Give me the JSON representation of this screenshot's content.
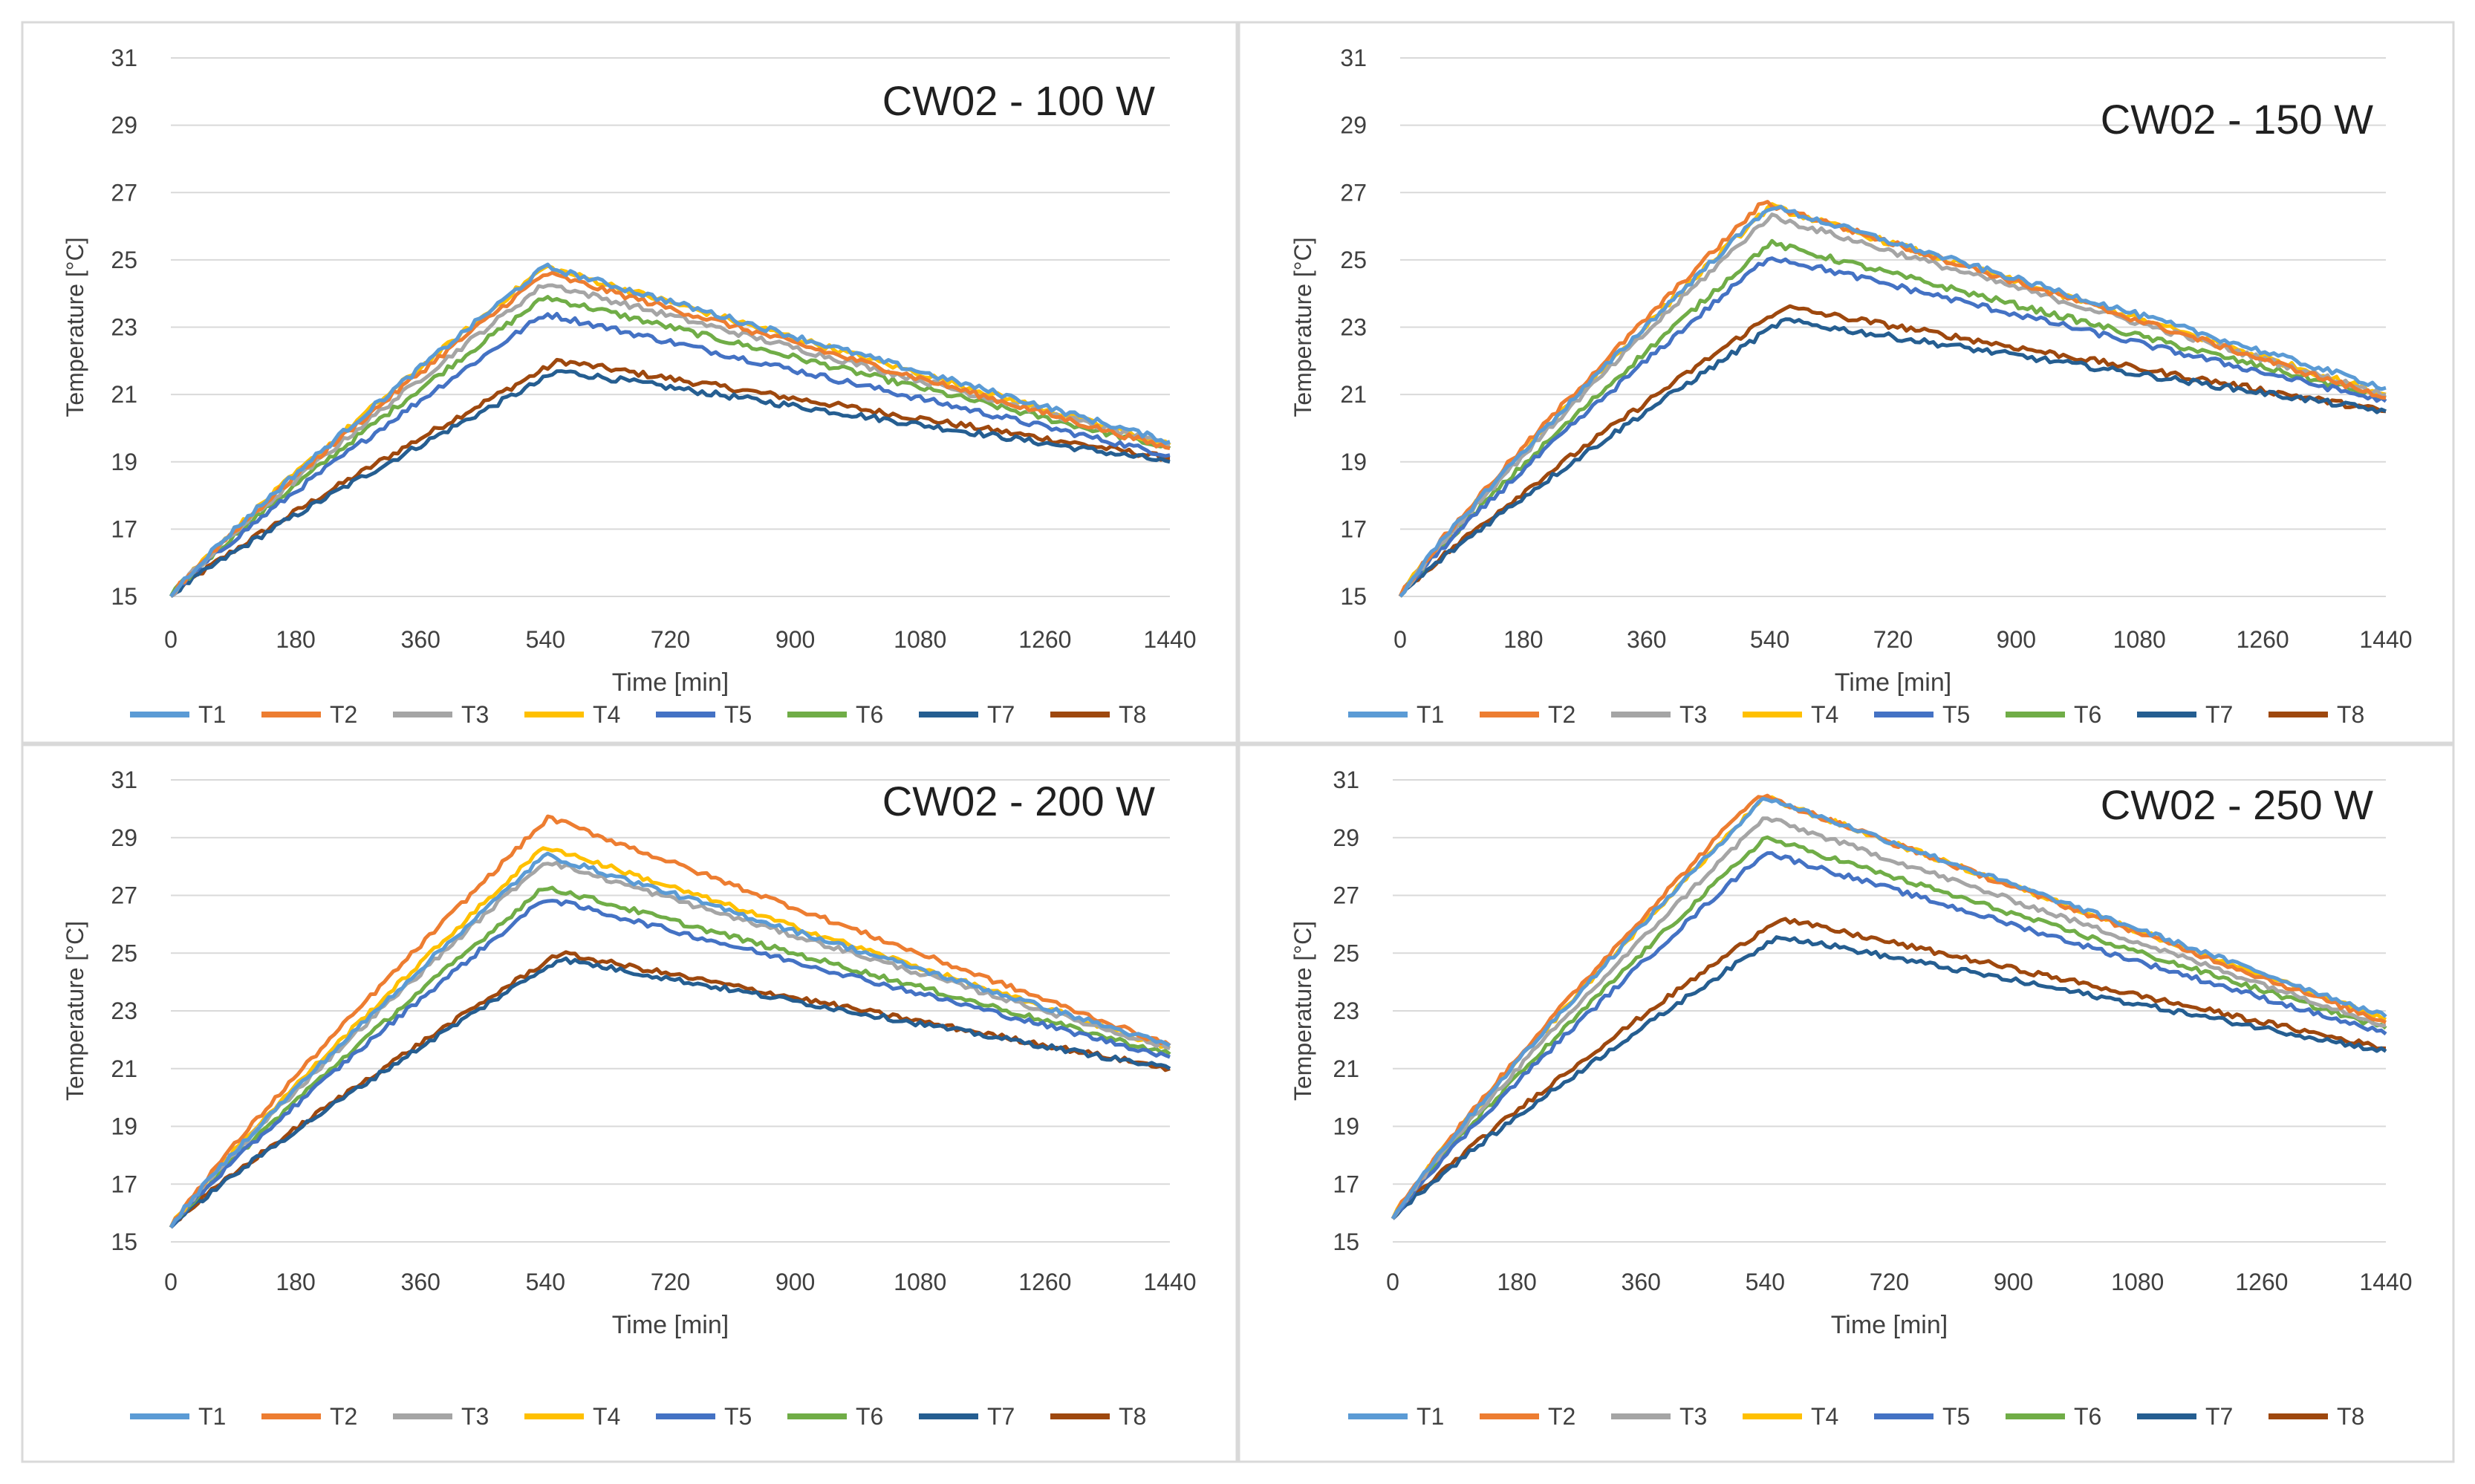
{
  "series_styles": [
    {
      "name": "T1",
      "color": "#5B9BD5"
    },
    {
      "name": "T2",
      "color": "#ED7D31"
    },
    {
      "name": "T3",
      "color": "#A5A5A5"
    },
    {
      "name": "T4",
      "color": "#FFC000"
    },
    {
      "name": "T5",
      "color": "#4472C4"
    },
    {
      "name": "T6",
      "color": "#70AD47"
    },
    {
      "name": "T7",
      "color": "#255E91"
    },
    {
      "name": "T8",
      "color": "#9E480E"
    }
  ],
  "chart_data": [
    {
      "type": "line",
      "title": "CW02 - 100 W",
      "xlabel": "Time [min]",
      "ylabel": "Temperature [°C]",
      "xlim": [
        0,
        1440
      ],
      "ylim": [
        15,
        31
      ],
      "xticks": [
        "0",
        "180",
        "360",
        "540",
        "720",
        "900",
        "1080",
        "1260",
        "1440"
      ],
      "yticks": [
        "15",
        "17",
        "19",
        "21",
        "23",
        "25",
        "27",
        "29",
        "31"
      ],
      "grid": true,
      "legend": "bottom",
      "series": [
        {
          "name": "T1",
          "x": [
            0,
            540,
            1440
          ],
          "values": [
            15.0,
            24.8,
            19.6
          ]
        },
        {
          "name": "T2",
          "x": [
            0,
            540,
            1440
          ],
          "values": [
            15.0,
            24.6,
            19.4
          ]
        },
        {
          "name": "T3",
          "x": [
            0,
            540,
            1440
          ],
          "values": [
            15.0,
            24.3,
            19.5
          ]
        },
        {
          "name": "T4",
          "x": [
            0,
            540,
            1440
          ],
          "values": [
            15.0,
            24.8,
            19.5
          ]
        },
        {
          "name": "T5",
          "x": [
            0,
            540,
            1440
          ],
          "values": [
            15.0,
            23.4,
            19.2
          ]
        },
        {
          "name": "T6",
          "x": [
            0,
            540,
            1440
          ],
          "values": [
            15.0,
            23.9,
            19.4
          ]
        },
        {
          "name": "T7",
          "x": [
            0,
            560,
            1440
          ],
          "values": [
            15.0,
            21.7,
            19.0
          ]
        },
        {
          "name": "T8",
          "x": [
            0,
            560,
            1440
          ],
          "values": [
            15.0,
            22.0,
            19.1
          ]
        }
      ]
    },
    {
      "type": "line",
      "title": "CW02 - 150 W",
      "xlabel": "Time [min]",
      "ylabel": "Temperature [°C]",
      "xlim": [
        0,
        1440
      ],
      "ylim": [
        15,
        31
      ],
      "xticks": [
        "0",
        "180",
        "360",
        "540",
        "720",
        "900",
        "1080",
        "1260",
        "1440"
      ],
      "yticks": [
        "15",
        "17",
        "19",
        "21",
        "23",
        "25",
        "27",
        "29",
        "31"
      ],
      "grid": true,
      "legend": "bottom",
      "series": [
        {
          "name": "T1",
          "x": [
            0,
            540,
            1440
          ],
          "values": [
            15.0,
            26.6,
            21.2
          ]
        },
        {
          "name": "T2",
          "x": [
            0,
            530,
            1440
          ],
          "values": [
            15.0,
            26.7,
            20.9
          ]
        },
        {
          "name": "T3",
          "x": [
            0,
            540,
            1440
          ],
          "values": [
            15.0,
            26.3,
            21.0
          ]
        },
        {
          "name": "T4",
          "x": [
            0,
            540,
            1440
          ],
          "values": [
            15.0,
            26.6,
            21.0
          ]
        },
        {
          "name": "T5",
          "x": [
            0,
            540,
            1440
          ],
          "values": [
            15.0,
            25.1,
            20.8
          ]
        },
        {
          "name": "T6",
          "x": [
            0,
            540,
            1440
          ],
          "values": [
            15.0,
            25.5,
            20.9
          ]
        },
        {
          "name": "T7",
          "x": [
            0,
            560,
            1440
          ],
          "values": [
            15.0,
            23.2,
            20.5
          ]
        },
        {
          "name": "T8",
          "x": [
            0,
            560,
            1440
          ],
          "values": [
            15.0,
            23.6,
            20.5
          ]
        }
      ]
    },
    {
      "type": "line",
      "title": "CW02 - 200 W",
      "xlabel": "Time [min]",
      "ylabel": "Temperature [°C]",
      "xlim": [
        0,
        1440
      ],
      "ylim": [
        15,
        31
      ],
      "xticks": [
        "0",
        "180",
        "360",
        "540",
        "720",
        "900",
        "1080",
        "1260",
        "1440"
      ],
      "yticks": [
        "15",
        "17",
        "19",
        "21",
        "23",
        "25",
        "27",
        "29",
        "31"
      ],
      "grid": true,
      "legend": "bottom",
      "series": [
        {
          "name": "T1",
          "x": [
            0,
            540,
            1440
          ],
          "values": [
            15.5,
            28.4,
            21.8
          ]
        },
        {
          "name": "T2",
          "x": [
            0,
            545,
            1440
          ],
          "values": [
            15.5,
            29.7,
            21.8
          ]
        },
        {
          "name": "T3",
          "x": [
            0,
            540,
            1440
          ],
          "values": [
            15.5,
            28.2,
            21.7
          ]
        },
        {
          "name": "T4",
          "x": [
            0,
            540,
            1440
          ],
          "values": [
            15.5,
            28.7,
            21.7
          ]
        },
        {
          "name": "T5",
          "x": [
            0,
            540,
            1440
          ],
          "values": [
            15.5,
            26.9,
            21.4
          ]
        },
        {
          "name": "T6",
          "x": [
            0,
            540,
            1440
          ],
          "values": [
            15.5,
            27.3,
            21.5
          ]
        },
        {
          "name": "T7",
          "x": [
            0,
            560,
            1440
          ],
          "values": [
            15.5,
            24.8,
            21.0
          ]
        },
        {
          "name": "T8",
          "x": [
            0,
            560,
            1440
          ],
          "values": [
            15.5,
            25.0,
            21.0
          ]
        }
      ]
    },
    {
      "type": "line",
      "title": "CW02 - 250 W",
      "xlabel": "Time [min]",
      "ylabel": "Temperature [°C]",
      "xlim": [
        0,
        1440
      ],
      "ylim": [
        15,
        31
      ],
      "xticks": [
        "0",
        "180",
        "360",
        "540",
        "720",
        "900",
        "1080",
        "1260",
        "1440"
      ],
      "yticks": [
        "15",
        "17",
        "19",
        "21",
        "23",
        "25",
        "27",
        "29",
        "31"
      ],
      "grid": true,
      "legend": "bottom",
      "series": [
        {
          "name": "T1",
          "x": [
            0,
            540,
            1440
          ],
          "values": [
            15.8,
            30.4,
            22.8
          ]
        },
        {
          "name": "T2",
          "x": [
            0,
            530,
            1440
          ],
          "values": [
            15.8,
            30.5,
            22.6
          ]
        },
        {
          "name": "T3",
          "x": [
            0,
            540,
            1440
          ],
          "values": [
            15.8,
            29.7,
            22.5
          ]
        },
        {
          "name": "T4",
          "x": [
            0,
            540,
            1440
          ],
          "values": [
            15.8,
            30.4,
            22.7
          ]
        },
        {
          "name": "T5",
          "x": [
            0,
            540,
            1440
          ],
          "values": [
            15.8,
            28.5,
            22.2
          ]
        },
        {
          "name": "T6",
          "x": [
            0,
            540,
            1440
          ],
          "values": [
            15.8,
            29.0,
            22.4
          ]
        },
        {
          "name": "T7",
          "x": [
            0,
            560,
            1440
          ],
          "values": [
            15.8,
            25.6,
            21.6
          ]
        },
        {
          "name": "T8",
          "x": [
            0,
            560,
            1440
          ],
          "values": [
            15.8,
            26.2,
            21.7
          ]
        }
      ]
    }
  ]
}
